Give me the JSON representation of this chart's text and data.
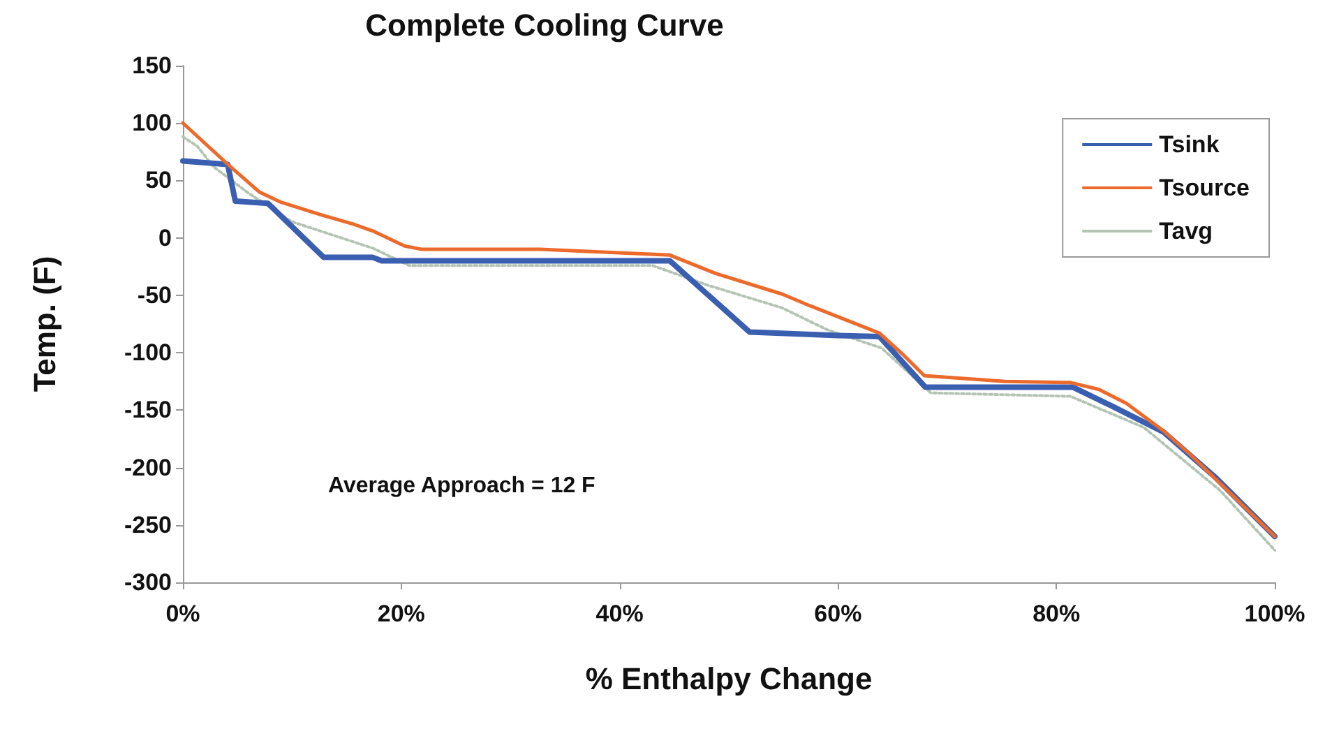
{
  "chart_data": {
    "type": "line",
    "title": "Complete Cooling Curve",
    "xlabel": "% Enthalpy Change",
    "ylabel": "Temp. (F)",
    "xlim": [
      0,
      100
    ],
    "xticks": [
      {
        "value": 0,
        "label": "0%"
      },
      {
        "value": 20,
        "label": "20%"
      },
      {
        "value": 40,
        "label": "40%"
      },
      {
        "value": 60,
        "label": "60%"
      },
      {
        "value": 80,
        "label": "80%"
      },
      {
        "value": 100,
        "label": "100%"
      }
    ],
    "ylim": [
      -300,
      150
    ],
    "yticks": [
      -300,
      -250,
      -200,
      -150,
      -100,
      -50,
      0,
      50,
      100,
      150
    ],
    "grid": false,
    "legend": "top right",
    "marker": "none",
    "annotations": [
      "Average Approach = 12 F"
    ],
    "series": [
      {
        "name": "Tsink",
        "color": "#3a5fb0",
        "line_style": "solid",
        "x": [
          0,
          4.1,
          4.8,
          7.8,
          12.9,
          17.4,
          18.2,
          44.6,
          51.9,
          60,
          63.8,
          68,
          81.5,
          85.2,
          89.8,
          94.5,
          100
        ],
        "values": [
          67,
          64,
          32,
          30,
          -17,
          -17,
          -20,
          -20,
          -82,
          -85,
          -86,
          -130,
          -130,
          -147,
          -169,
          -208,
          -260
        ]
      },
      {
        "name": "Tsource",
        "color": "#ec6a2c",
        "line_style": "solid",
        "x": [
          0,
          4,
          7,
          9,
          12.7,
          15.6,
          17.4,
          20.3,
          21.9,
          32.7,
          44.6,
          48.8,
          54.9,
          57.4,
          63.8,
          66,
          67.9,
          75.3,
          81.3,
          83.9,
          86.4,
          89.8,
          92.3,
          97.4,
          100
        ],
        "values": [
          100,
          65,
          40,
          31,
          20,
          12,
          6,
          -7,
          -10,
          -10,
          -15,
          -31,
          -49,
          -59,
          -83,
          -102,
          -120,
          -125,
          -126,
          -132,
          -144,
          -168,
          -189,
          -236,
          -260
        ]
      },
      {
        "name": "Tavg",
        "color": "#b4c4b4",
        "line_style": "dotted",
        "x": [
          0,
          1.3,
          2.8,
          6,
          10,
          17.4,
          20.7,
          43,
          48,
          54.9,
          59,
          64,
          68.5,
          81.3,
          88,
          95,
          100
        ],
        "values": [
          88,
          80,
          62,
          39,
          14,
          -9,
          -24,
          -24,
          -41,
          -61,
          -80,
          -96,
          -135,
          -138,
          -165,
          -220,
          -272
        ]
      }
    ]
  }
}
